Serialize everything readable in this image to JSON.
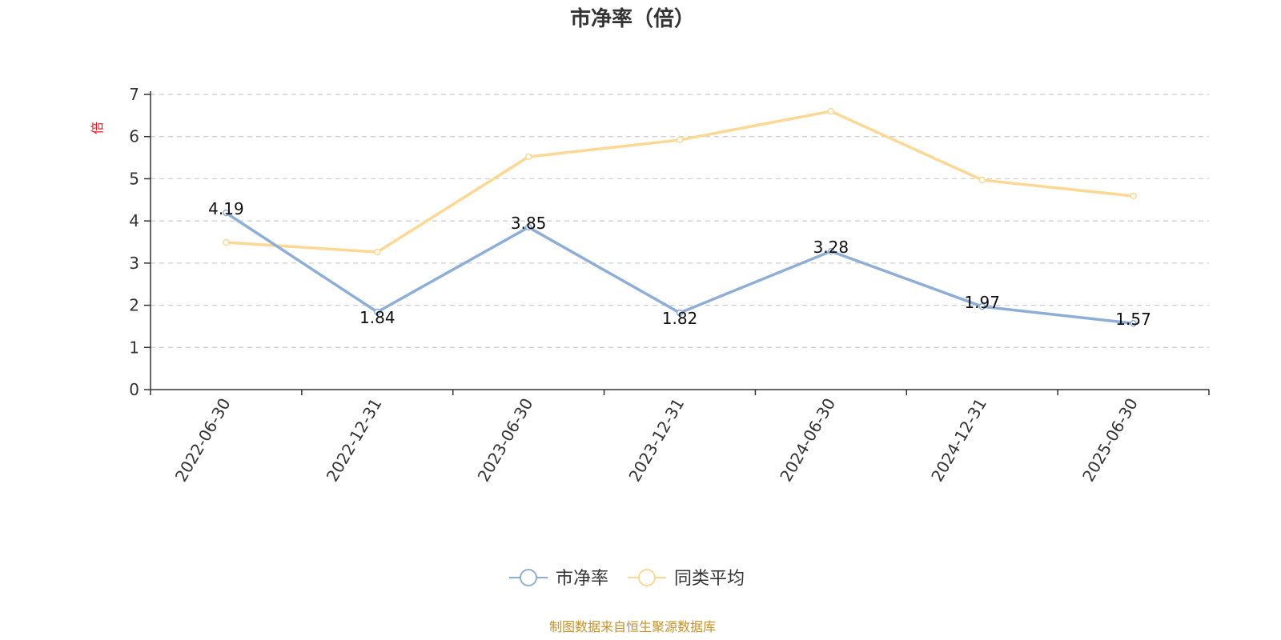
{
  "chart_data": {
    "type": "line",
    "title": "市净率（倍）",
    "ylabel": "倍",
    "xlabel": "",
    "x": [
      "2022-06-30",
      "2022-12-31",
      "2023-06-30",
      "2023-12-31",
      "2024-06-30",
      "2024-12-31",
      "2025-06-30"
    ],
    "ylim": [
      0,
      7
    ],
    "yticks": [
      0,
      1,
      2,
      3,
      4,
      5,
      6,
      7
    ],
    "grid": true,
    "legend_position": "bottom",
    "series": [
      {
        "name": "市净率",
        "color": "#8eaed8",
        "values": [
          4.19,
          1.84,
          3.85,
          1.82,
          3.28,
          1.97,
          1.57
        ],
        "labels": [
          "4.19",
          "1.84",
          "3.85",
          "1.82",
          "3.28",
          "1.97",
          "1.57"
        ]
      },
      {
        "name": "同类平均",
        "color": "#fdd894",
        "values": [
          3.49,
          3.26,
          5.52,
          5.92,
          6.6,
          4.97,
          4.59
        ]
      }
    ]
  },
  "footer": {
    "source_text": "制图数据来自恒生聚源数据库"
  }
}
